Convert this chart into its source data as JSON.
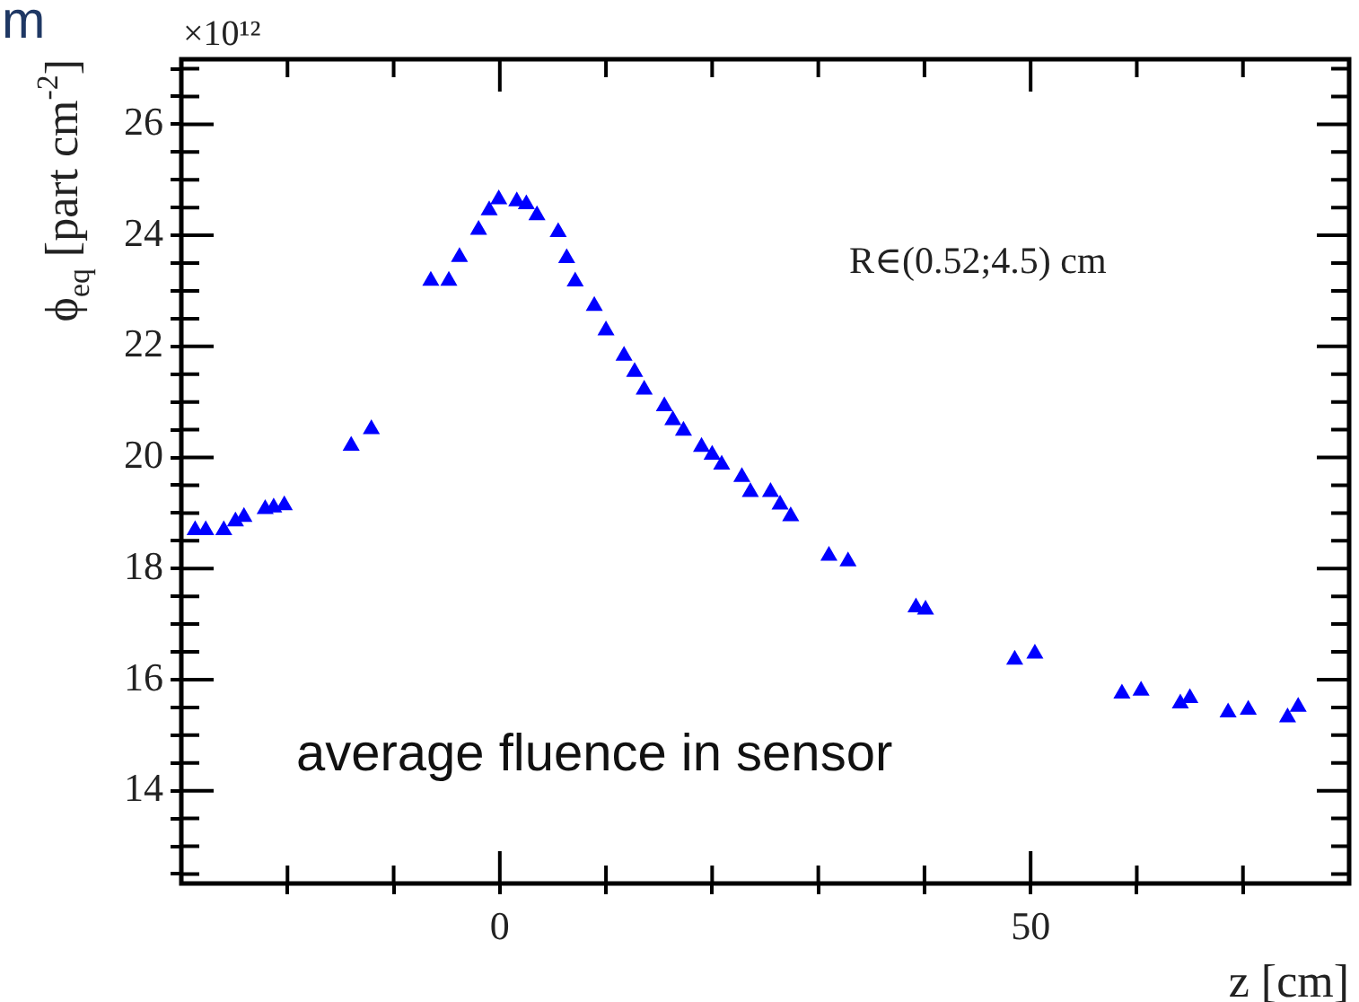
{
  "chart_data": {
    "type": "scatter",
    "xlabel": "z [cm]",
    "ylabel": "ϕ$_{eq}$ [part cm$^{-2}$]",
    "annotations": [
      "×10¹²",
      "R∈(0.52;4.5) cm",
      "average fluence in sensor",
      "m"
    ],
    "series": [
      {
        "color": "#0000ff",
        "x": [
          -28.7,
          -27.7,
          -26.0,
          -24.9,
          -24.1,
          -22.1,
          -21.3,
          -20.3,
          -14.0,
          -12.1,
          -6.5,
          -4.8,
          -3.8,
          -2.0,
          -1.0,
          -0.1,
          1.6,
          2.5,
          3.5,
          5.5,
          6.3,
          7.1,
          8.9,
          10.0,
          11.7,
          12.7,
          13.6,
          15.5,
          16.3,
          17.3,
          19.0,
          20.0,
          20.9,
          22.8,
          23.6,
          25.5,
          26.4,
          27.4,
          31.0,
          32.8,
          39.2,
          40.1,
          48.5,
          50.4,
          58.6,
          60.4,
          64.1,
          65.0,
          68.6,
          70.5,
          74.2,
          75.2
        ],
        "values": [
          18.69,
          18.69,
          18.69,
          18.85,
          18.93,
          19.07,
          19.1,
          19.14,
          20.21,
          20.51,
          23.18,
          23.18,
          23.61,
          24.1,
          24.45,
          24.65,
          24.61,
          24.56,
          24.36,
          24.06,
          23.59,
          23.17,
          22.73,
          22.29,
          21.83,
          21.54,
          21.22,
          20.92,
          20.67,
          20.48,
          20.19,
          20.05,
          19.87,
          19.65,
          19.38,
          19.38,
          19.15,
          18.94,
          18.23,
          18.13,
          17.3,
          17.26,
          16.36,
          16.47,
          15.75,
          15.8,
          15.57,
          15.67,
          15.41,
          15.46,
          15.32,
          15.51
        ]
      }
    ],
    "marker": "triangle",
    "grid": false,
    "legend": false,
    "xlim": [
      -30,
      80
    ],
    "ylim": [
      12.33,
      27.17
    ],
    "xticks": [
      {
        "value": -20,
        "label": null
      },
      {
        "value": -10,
        "label": null
      },
      0,
      {
        "value": 10,
        "label": null
      },
      {
        "value": 20,
        "label": null
      },
      {
        "value": 30,
        "label": null
      },
      {
        "value": 40,
        "label": null
      },
      50,
      {
        "value": 60,
        "label": null
      },
      {
        "value": 70,
        "label": null
      }
    ],
    "yticks": [
      {
        "value": 12.5,
        "label": null
      },
      {
        "value": 13,
        "label": null
      },
      {
        "value": 13.5,
        "label": null
      },
      14,
      {
        "value": 14.5,
        "label": null
      },
      {
        "value": 15,
        "label": null
      },
      {
        "value": 15.5,
        "label": null
      },
      16,
      {
        "value": 16.5,
        "label": null
      },
      {
        "value": 17,
        "label": null
      },
      {
        "value": 17.5,
        "label": null
      },
      18,
      {
        "value": 18.5,
        "label": null
      },
      {
        "value": 19,
        "label": null
      },
      {
        "value": 19.5,
        "label": null
      },
      20,
      {
        "value": 20.5,
        "label": null
      },
      {
        "value": 21,
        "label": null
      },
      {
        "value": 21.5,
        "label": null
      },
      22,
      {
        "value": 22.5,
        "label": null
      },
      {
        "value": 23,
        "label": null
      },
      {
        "value": 23.5,
        "label": null
      },
      24,
      {
        "value": 24.5,
        "label": null
      },
      {
        "value": 25,
        "label": null
      },
      {
        "value": 25.5,
        "label": null
      },
      26,
      {
        "value": 26.5,
        "label": null
      },
      {
        "value": 27,
        "label": null
      }
    ]
  }
}
